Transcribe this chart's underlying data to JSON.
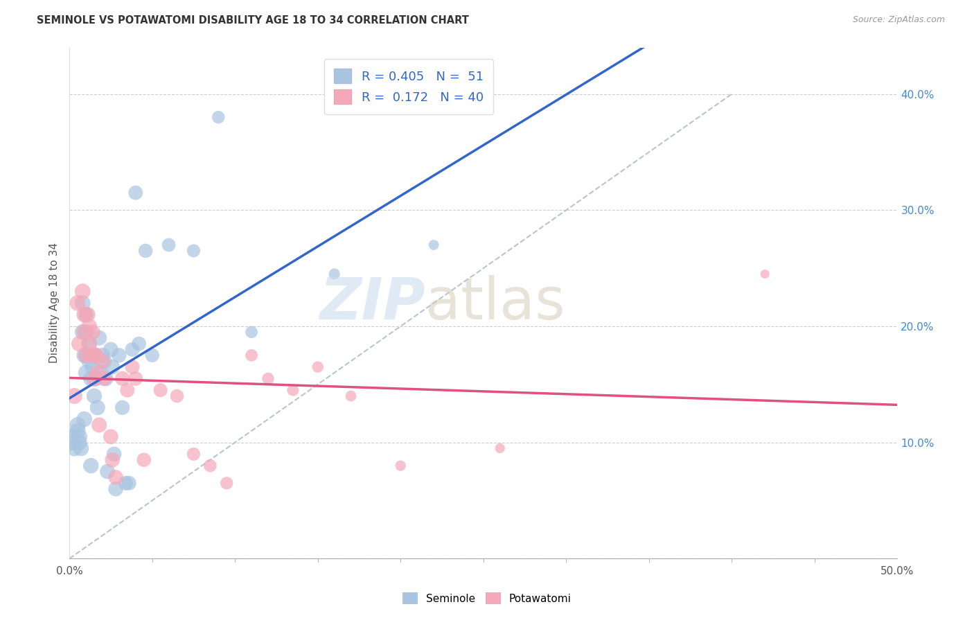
{
  "title": "SEMINOLE VS POTAWATOMI DISABILITY AGE 18 TO 34 CORRELATION CHART",
  "source": "Source: ZipAtlas.com",
  "ylabel": "Disability Age 18 to 34",
  "xlim": [
    0.0,
    0.5
  ],
  "ylim": [
    -0.02,
    0.44
  ],
  "plot_ylim": [
    0.0,
    0.44
  ],
  "xtick_positions": [
    0.0,
    0.5
  ],
  "xtick_labels": [
    "0.0%",
    "50.0%"
  ],
  "ytick_positions": [
    0.0,
    0.1,
    0.2,
    0.3,
    0.4
  ],
  "ytick_labels": [
    "",
    "10.0%",
    "20.0%",
    "30.0%",
    "40.0%"
  ],
  "seminole_color": "#a8c4e0",
  "potawatomi_color": "#f4a8b8",
  "trend_seminole_color": "#3366cc",
  "trend_potawatomi_color": "#e05080",
  "trend_dashed_color": "#b8c4d0",
  "R_seminole": 0.405,
  "N_seminole": 51,
  "R_potawatomi": 0.172,
  "N_potawatomi": 40,
  "seminole_x": [
    0.002,
    0.002,
    0.003,
    0.005,
    0.005,
    0.006,
    0.006,
    0.007,
    0.008,
    0.008,
    0.009,
    0.009,
    0.01,
    0.01,
    0.01,
    0.01,
    0.012,
    0.012,
    0.013,
    0.013,
    0.014,
    0.015,
    0.015,
    0.016,
    0.016,
    0.017,
    0.018,
    0.019,
    0.02,
    0.021,
    0.022,
    0.023,
    0.025,
    0.026,
    0.027,
    0.028,
    0.03,
    0.032,
    0.034,
    0.036,
    0.038,
    0.04,
    0.042,
    0.046,
    0.05,
    0.06,
    0.075,
    0.09,
    0.11,
    0.16,
    0.22
  ],
  "seminole_y": [
    0.105,
    0.1,
    0.095,
    0.115,
    0.11,
    0.105,
    0.1,
    0.095,
    0.22,
    0.195,
    0.175,
    0.12,
    0.21,
    0.195,
    0.175,
    0.16,
    0.185,
    0.17,
    0.155,
    0.08,
    0.165,
    0.155,
    0.14,
    0.175,
    0.155,
    0.13,
    0.19,
    0.16,
    0.175,
    0.17,
    0.155,
    0.075,
    0.18,
    0.165,
    0.09,
    0.06,
    0.175,
    0.13,
    0.065,
    0.065,
    0.18,
    0.315,
    0.185,
    0.265,
    0.175,
    0.27,
    0.265,
    0.38,
    0.195,
    0.245,
    0.27
  ],
  "potawatomi_x": [
    0.003,
    0.005,
    0.006,
    0.008,
    0.009,
    0.009,
    0.01,
    0.011,
    0.012,
    0.012,
    0.013,
    0.014,
    0.015,
    0.015,
    0.016,
    0.017,
    0.018,
    0.02,
    0.021,
    0.025,
    0.026,
    0.028,
    0.032,
    0.035,
    0.038,
    0.04,
    0.045,
    0.055,
    0.065,
    0.075,
    0.085,
    0.095,
    0.11,
    0.12,
    0.135,
    0.15,
    0.17,
    0.2,
    0.26,
    0.42
  ],
  "potawatomi_y": [
    0.14,
    0.22,
    0.185,
    0.23,
    0.21,
    0.195,
    0.175,
    0.21,
    0.2,
    0.185,
    0.175,
    0.195,
    0.175,
    0.155,
    0.175,
    0.16,
    0.115,
    0.17,
    0.155,
    0.105,
    0.085,
    0.07,
    0.155,
    0.145,
    0.165,
    0.155,
    0.085,
    0.145,
    0.14,
    0.09,
    0.08,
    0.065,
    0.175,
    0.155,
    0.145,
    0.165,
    0.14,
    0.08,
    0.095,
    0.245
  ]
}
